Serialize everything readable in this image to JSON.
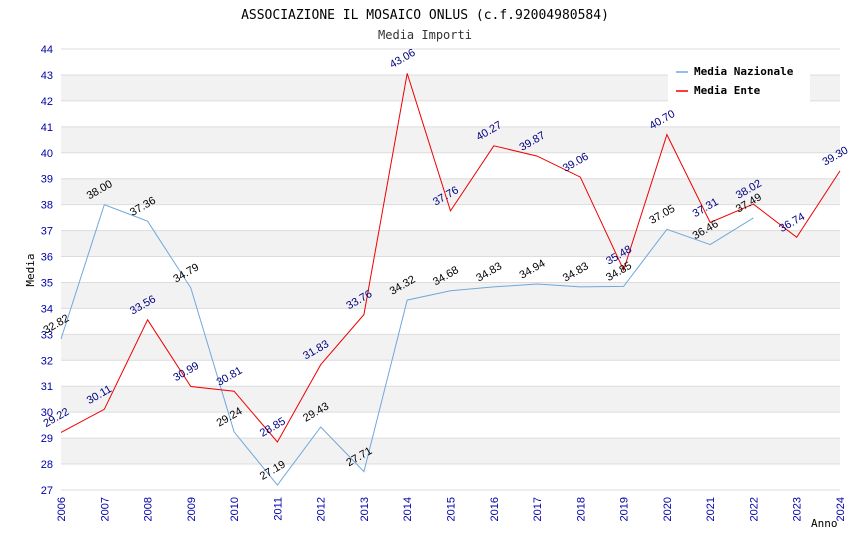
{
  "chart_data": {
    "type": "line",
    "title": "ASSOCIAZIONE IL MOSAICO ONLUS (c.f.92004980584)",
    "subtitle": "Media Importi",
    "xlabel": "Anno",
    "ylabel": "Media",
    "ylim": [
      27,
      44
    ],
    "yticks": [
      "27",
      "28",
      "29",
      "30",
      "31",
      "32",
      "33",
      "34",
      "35",
      "36",
      "37",
      "38",
      "39",
      "40",
      "41",
      "42",
      "43",
      "44"
    ],
    "x": [
      "2006",
      "2007",
      "2008",
      "2009",
      "2010",
      "2011",
      "2012",
      "2013",
      "2014",
      "2015",
      "2016",
      "2017",
      "2018",
      "2019",
      "2020",
      "2021",
      "2022",
      "2023",
      "2024"
    ],
    "grid": "horizontal bands",
    "legend_position": "top-right",
    "series": [
      {
        "name": "Media Nazionale",
        "color": "#6fa8dc",
        "values": [
          32.82,
          38.0,
          37.36,
          34.79,
          29.24,
          27.19,
          29.43,
          27.71,
          34.32,
          34.68,
          34.83,
          34.94,
          34.83,
          34.85,
          37.05,
          36.46,
          37.49,
          null,
          null
        ],
        "labels": [
          "32.82",
          "38.00",
          "37.36",
          "34.79",
          "29.24",
          "27.19",
          "29.43",
          "27.71",
          "34.32",
          "34.68",
          "34.83",
          "34.94",
          "34.83",
          "34.85",
          "37.05",
          "36.46",
          "37.49",
          "",
          ""
        ]
      },
      {
        "name": "Media Ente",
        "color": "#ee0000",
        "values": [
          29.22,
          30.11,
          33.56,
          30.99,
          30.81,
          28.85,
          31.83,
          33.76,
          43.06,
          37.76,
          40.27,
          39.87,
          39.06,
          35.48,
          40.7,
          37.31,
          38.02,
          36.74,
          39.3
        ],
        "labels": [
          "29.22",
          "30.11",
          "33.56",
          "30.99",
          "30.81",
          "28.85",
          "31.83",
          "33.76",
          "43.06",
          "37.76",
          "40.27",
          "39.87",
          "39.06",
          "35.48",
          "40.70",
          "37.31",
          "38.02",
          "36.74",
          "39.30"
        ]
      }
    ]
  }
}
